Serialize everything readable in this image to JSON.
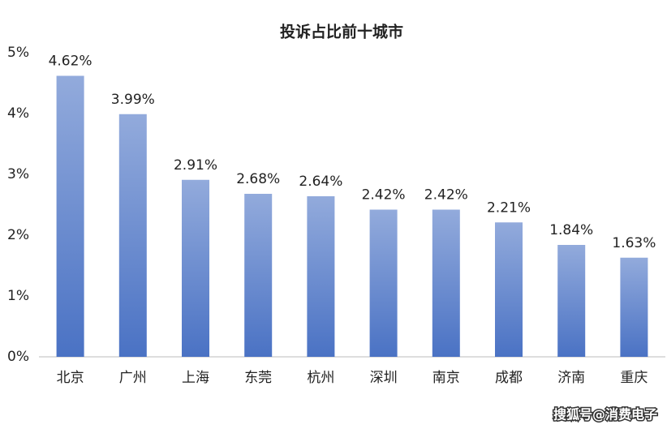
{
  "chart_data": {
    "type": "bar",
    "title": "投诉占比前十城市",
    "categories": [
      "北京",
      "广州",
      "上海",
      "东莞",
      "杭州",
      "深圳",
      "南京",
      "成都",
      "济南",
      "重庆"
    ],
    "values": [
      4.62,
      3.99,
      2.91,
      2.68,
      2.64,
      2.42,
      2.42,
      2.21,
      1.84,
      1.63
    ],
    "value_labels": [
      "4.62%",
      "3.99%",
      "2.91%",
      "2.68%",
      "2.64%",
      "2.42%",
      "2.42%",
      "2.21%",
      "1.84%",
      "1.63%"
    ],
    "color": "#4a72c4",
    "ylim": [
      0,
      5
    ],
    "yticks": [
      {
        "value": 0,
        "label": "0%"
      },
      {
        "value": 1,
        "label": "1%"
      },
      {
        "value": 2,
        "label": "2%"
      },
      {
        "value": 3,
        "label": "3%"
      },
      {
        "value": 4,
        "label": "4%"
      },
      {
        "value": 5,
        "label": "5%"
      }
    ],
    "grid": false,
    "watermark": "搜狐号@消费电子"
  }
}
